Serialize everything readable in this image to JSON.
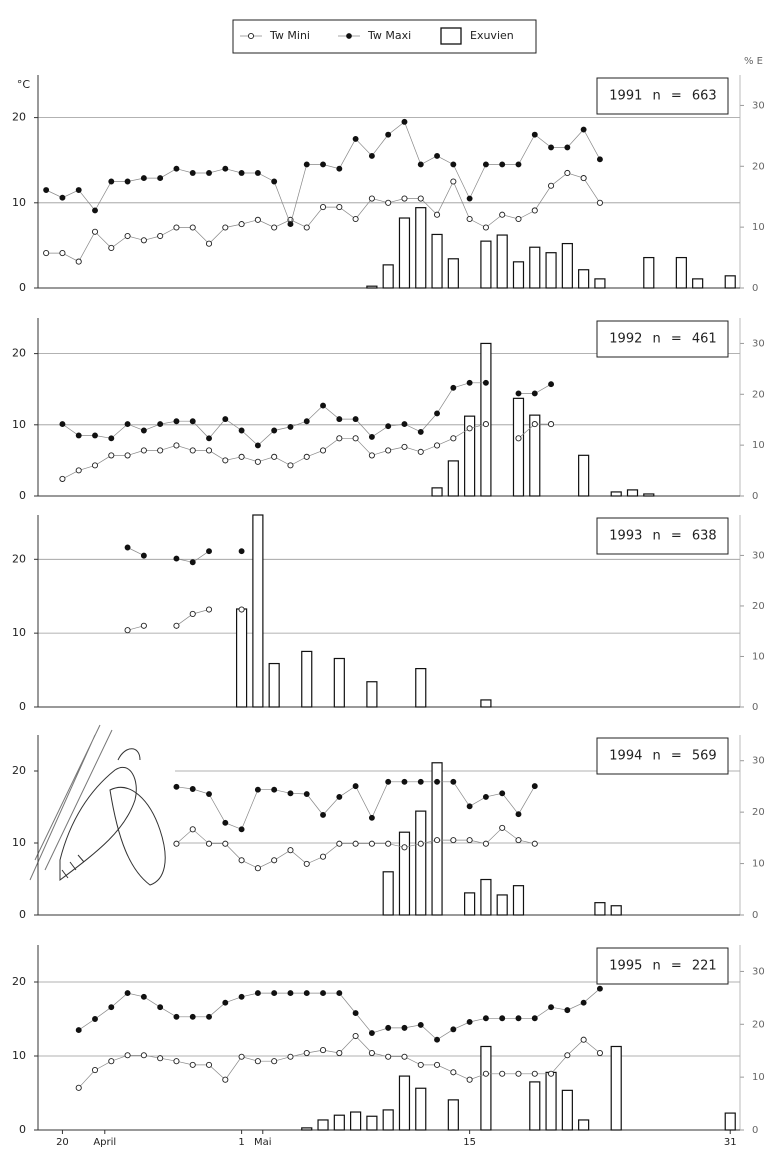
{
  "chart_data": [
    {
      "type": "combo",
      "title": "1991 n = 663",
      "y_label": "°C",
      "y2_label": "% E",
      "x": [
        19,
        20,
        21,
        22,
        23,
        24,
        25,
        26,
        27,
        28,
        29,
        30,
        31,
        32,
        33,
        34,
        35,
        36,
        37,
        38,
        39,
        40,
        41,
        42,
        43,
        44,
        45,
        46,
        47,
        48,
        49,
        50,
        51,
        52,
        53,
        54,
        55,
        56,
        57,
        58,
        59,
        60,
        61
      ],
      "xlim": [
        18.5,
        61.6
      ],
      "ylim": [
        0,
        25
      ],
      "yticks": [
        0,
        10,
        20
      ],
      "y2lim": [
        0,
        35
      ],
      "y2ticks": [
        0,
        10,
        20,
        30
      ],
      "grid": true,
      "series": [
        {
          "name": "Tw Mini",
          "type": "line",
          "marker": "open",
          "color": "#222222",
          "values": [
            4.1,
            4.1,
            3.1,
            6.6,
            4.7,
            6.1,
            5.6,
            6.1,
            7.1,
            7.1,
            5.2,
            7.1,
            7.5,
            8.0,
            7.1,
            8.0,
            7.1,
            9.5,
            9.5,
            8.1,
            10.5,
            10.0,
            10.5,
            10.5,
            8.6,
            12.5,
            8.1,
            7.1,
            8.6,
            8.1,
            9.1,
            12.0,
            13.5,
            12.9,
            10.0,
            null,
            null,
            null,
            null,
            null,
            null,
            null,
            null
          ]
        },
        {
          "name": "Tw Maxi",
          "type": "line",
          "marker": "filled",
          "color": "#111111",
          "values": [
            11.5,
            10.6,
            11.5,
            9.1,
            12.5,
            12.5,
            12.9,
            12.9,
            14.0,
            13.5,
            13.5,
            14.0,
            13.5,
            13.5,
            12.5,
            7.5,
            14.5,
            14.5,
            14.0,
            17.5,
            15.5,
            18.0,
            19.5,
            14.5,
            15.5,
            14.5,
            10.5,
            14.5,
            14.5,
            14.5,
            18.0,
            16.5,
            16.5,
            18.6,
            15.1,
            null,
            null,
            null,
            null,
            null,
            null,
            null,
            null
          ]
        },
        {
          "name": "Exuvien",
          "type": "bar",
          "axis": "y2",
          "color": "#111111",
          "values": [
            null,
            null,
            null,
            null,
            null,
            null,
            null,
            null,
            null,
            null,
            null,
            null,
            null,
            null,
            null,
            null,
            null,
            null,
            null,
            null,
            0.3,
            3.8,
            11.5,
            13.2,
            8.8,
            4.8,
            null,
            7.7,
            8.7,
            4.3,
            6.7,
            5.8,
            7.3,
            3.0,
            1.5,
            null,
            null,
            5.0,
            null,
            5.0,
            1.5,
            null,
            2.0
          ]
        }
      ]
    },
    {
      "type": "combo",
      "title": "1992 n = 461",
      "x": [
        20,
        21,
        22,
        23,
        24,
        25,
        26,
        27,
        28,
        29,
        30,
        31,
        32,
        33,
        34,
        35,
        36,
        37,
        38,
        39,
        40,
        41,
        42,
        43,
        44,
        45,
        46,
        47,
        48,
        49,
        50,
        51,
        52,
        53,
        54,
        55,
        56
      ],
      "xlim": [
        18.5,
        61.6
      ],
      "ylim": [
        0,
        25
      ],
      "yticks": [
        0,
        10,
        20
      ],
      "y2lim": [
        0,
        35
      ],
      "y2ticks": [
        0,
        10,
        20,
        30
      ],
      "grid": true,
      "series": [
        {
          "type": "line",
          "marker": "open",
          "color": "#222222",
          "values": [
            2.4,
            3.6,
            4.3,
            5.7,
            5.7,
            6.4,
            6.4,
            7.1,
            6.4,
            6.4,
            5.0,
            5.5,
            4.8,
            5.5,
            4.3,
            5.5,
            6.4,
            8.1,
            8.1,
            5.7,
            6.4,
            6.9,
            6.2,
            7.1,
            8.1,
            9.5,
            10.1,
            null,
            8.1,
            10.1,
            10.1,
            null,
            null,
            null,
            null,
            null,
            null
          ]
        },
        {
          "type": "line",
          "marker": "filled",
          "color": "#111111",
          "values": [
            10.1,
            8.5,
            8.5,
            8.1,
            10.1,
            9.2,
            10.1,
            10.5,
            10.5,
            8.1,
            10.8,
            9.2,
            7.1,
            9.2,
            9.7,
            10.5,
            12.7,
            10.8,
            10.8,
            8.3,
            9.8,
            10.1,
            9.0,
            11.6,
            15.2,
            15.9,
            15.9,
            null,
            14.4,
            14.4,
            15.7,
            null,
            null,
            null,
            null,
            null,
            null
          ]
        },
        {
          "type": "bar",
          "axis": "y2",
          "color": "#111111",
          "values": [
            null,
            null,
            null,
            null,
            null,
            null,
            null,
            null,
            null,
            null,
            null,
            null,
            null,
            null,
            null,
            null,
            null,
            null,
            null,
            null,
            null,
            null,
            null,
            1.6,
            6.9,
            15.7,
            30.0,
            null,
            19.2,
            15.9,
            null,
            null,
            8.0,
            null,
            0.8,
            1.2,
            0.4
          ]
        }
      ]
    },
    {
      "type": "combo",
      "title": "1993 n = 638",
      "x": [
        24,
        25,
        26,
        27,
        28,
        29,
        30,
        31,
        32,
        33,
        34,
        35,
        36,
        37,
        38,
        39,
        40,
        41,
        42,
        43,
        44,
        45,
        46
      ],
      "xlim": [
        18.5,
        61.6
      ],
      "ylim": [
        0,
        26
      ],
      "yticks": [
        0,
        10,
        20
      ],
      "y2lim": [
        0,
        38
      ],
      "y2ticks": [
        0,
        10,
        20,
        30
      ],
      "grid": true,
      "series": [
        {
          "type": "line",
          "marker": "open",
          "color": "#222222",
          "values": [
            10.4,
            11.0,
            null,
            11.0,
            12.6,
            13.2,
            null,
            13.2,
            null,
            null,
            null,
            null,
            null,
            null,
            null,
            null,
            null,
            null,
            null,
            null,
            null,
            null,
            null
          ]
        },
        {
          "type": "line",
          "marker": "filled",
          "color": "#111111",
          "values": [
            21.6,
            20.5,
            null,
            20.1,
            19.6,
            21.1,
            null,
            21.1,
            null,
            null,
            null,
            null,
            null,
            null,
            null,
            null,
            null,
            null,
            null,
            null,
            null,
            null,
            null
          ]
        },
        {
          "type": "bar",
          "axis": "y2",
          "color": "#111111",
          "values": [
            null,
            null,
            null,
            null,
            null,
            null,
            null,
            19.4,
            38,
            8.6,
            null,
            11.0,
            null,
            9.6,
            null,
            5.0,
            null,
            null,
            7.6,
            null,
            null,
            null,
            1.4
          ]
        }
      ]
    },
    {
      "type": "combo",
      "title": "1994 n = 569",
      "x": [
        27,
        28,
        29,
        30,
        31,
        32,
        33,
        34,
        35,
        36,
        37,
        38,
        39,
        40,
        41,
        42,
        43,
        44,
        45,
        46,
        47,
        48,
        49,
        50,
        51,
        52,
        53,
        54
      ],
      "xlim": [
        18.5,
        61.6
      ],
      "ylim": [
        0,
        25
      ],
      "yticks": [
        0,
        10,
        20
      ],
      "y2lim": [
        0,
        35
      ],
      "y2ticks": [
        0,
        10,
        20,
        30
      ],
      "grid": true,
      "series": [
        {
          "type": "line",
          "marker": "open",
          "color": "#222222",
          "values": [
            9.9,
            11.9,
            9.9,
            9.9,
            7.6,
            6.5,
            7.6,
            9.0,
            7.1,
            8.1,
            9.9,
            9.9,
            9.9,
            9.9,
            9.4,
            9.9,
            10.4,
            10.4,
            10.4,
            9.9,
            12.1,
            10.4,
            9.9,
            null,
            null,
            null,
            null,
            null
          ]
        },
        {
          "type": "line",
          "marker": "filled",
          "color": "#111111",
          "values": [
            17.8,
            17.5,
            16.8,
            12.8,
            11.9,
            17.4,
            17.4,
            16.9,
            16.8,
            13.9,
            16.4,
            17.9,
            13.5,
            18.5,
            18.5,
            18.5,
            18.5,
            18.5,
            15.1,
            16.4,
            16.9,
            14.0,
            17.9,
            null,
            null,
            null,
            null,
            null
          ]
        },
        {
          "type": "bar",
          "axis": "y2",
          "color": "#111111",
          "values": [
            null,
            null,
            null,
            null,
            null,
            null,
            null,
            null,
            null,
            null,
            null,
            null,
            null,
            8.4,
            16.1,
            20.2,
            29.6,
            null,
            4.3,
            6.9,
            3.9,
            5.7,
            null,
            null,
            null,
            null,
            2.4,
            1.8
          ]
        }
      ]
    },
    {
      "type": "combo",
      "title": "1995 n = 221",
      "x": [
        21,
        22,
        23,
        24,
        25,
        26,
        27,
        28,
        29,
        30,
        31,
        32,
        33,
        34,
        35,
        36,
        37,
        38,
        39,
        40,
        41,
        42,
        43,
        44,
        45,
        46,
        47,
        48,
        49,
        50,
        51,
        52,
        53,
        54,
        55,
        56,
        57,
        58,
        59,
        60,
        61
      ],
      "xlim": [
        18.5,
        61.6
      ],
      "ylim": [
        0,
        25
      ],
      "yticks": [
        0,
        10,
        20
      ],
      "y2lim": [
        0,
        35
      ],
      "y2ticks": [
        0,
        10,
        20,
        30
      ],
      "grid": true,
      "xticks": [
        20,
        {
          "value": 22.6,
          "label": "April"
        },
        {
          "value": 31,
          "label": "1"
        },
        {
          "value": 32.3,
          "label": "Mai"
        },
        {
          "value": 45,
          "label": "15"
        },
        {
          "value": 61,
          "label": "31"
        }
      ],
      "series": [
        {
          "type": "line",
          "marker": "open",
          "color": "#222222",
          "values": [
            5.7,
            8.1,
            9.3,
            10.1,
            10.1,
            9.7,
            9.3,
            8.8,
            8.8,
            6.8,
            9.9,
            9.3,
            9.3,
            9.9,
            10.4,
            10.8,
            10.4,
            12.7,
            10.4,
            9.9,
            9.9,
            8.8,
            8.8,
            7.8,
            6.8,
            7.6,
            7.6,
            7.6,
            7.6,
            7.6,
            10.1,
            12.2,
            10.4,
            null,
            null,
            null,
            null,
            null,
            null,
            null,
            null
          ]
        },
        {
          "type": "line",
          "marker": "filled",
          "color": "#111111",
          "values": [
            13.5,
            15.0,
            16.6,
            18.5,
            18.0,
            16.6,
            15.3,
            15.3,
            15.3,
            17.2,
            18.0,
            18.5,
            18.5,
            18.5,
            18.5,
            18.5,
            18.5,
            15.8,
            13.1,
            13.8,
            13.8,
            14.2,
            12.2,
            13.6,
            14.6,
            15.1,
            15.1,
            15.1,
            15.1,
            16.6,
            16.2,
            17.2,
            19.1,
            null,
            null,
            null,
            null,
            null,
            null,
            null,
            null
          ]
        },
        {
          "type": "bar",
          "axis": "y2",
          "color": "#111111",
          "values": [
            null,
            null,
            null,
            null,
            null,
            null,
            null,
            null,
            null,
            null,
            null,
            null,
            null,
            null,
            0.4,
            1.9,
            2.8,
            3.4,
            2.6,
            3.8,
            10.2,
            7.9,
            null,
            5.7,
            null,
            15.8,
            null,
            null,
            9.1,
            10.9,
            7.5,
            1.9,
            null,
            15.8,
            null,
            null,
            null,
            null,
            null,
            null,
            3.2
          ]
        }
      ]
    }
  ]
}
